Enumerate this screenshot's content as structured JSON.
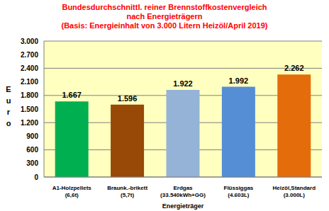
{
  "chart_data": {
    "type": "bar",
    "title": "Bundesdurchschnittl. reiner Brennstoffkostenvergleich\nnach Energieträgern\n(Basis: Energieinhalt von  3.000 Litern Heizöl/April 2019)",
    "x_label": "Energieträger",
    "y_label": "Euro",
    "categories": [
      "A1-Holzpellets\n(6,6t)",
      "Braunk.-brikett\n(5,7t)",
      "Erdgas\n(33.540kWh+GG)",
      "Flüssiggas\n(4.603L)",
      "Heizöl,Standard\n(3.000L)"
    ],
    "values": [
      1667,
      1596,
      1922,
      1992,
      2262
    ],
    "value_labels": [
      "1.667",
      "1.596",
      "1.922",
      "1.992",
      "2.262"
    ],
    "colors": [
      "#00b050",
      "#984807",
      "#95b3d7",
      "#558ed5",
      "#e46c0a"
    ],
    "ylim": [
      0,
      3000
    ],
    "yticks": [
      0,
      300,
      600,
      900,
      {
        "value": 1200,
        "label": "1.200"
      },
      {
        "value": 1500,
        "label": "1.500"
      },
      {
        "value": 1800,
        "label": "1.800"
      },
      {
        "value": 2100,
        "label": "2.100"
      },
      {
        "value": 2400,
        "label": "2.400"
      },
      {
        "value": 2700,
        "label": "2.700"
      },
      {
        "value": 3000,
        "label": "3.000"
      }
    ],
    "grid": true,
    "data_labels": true
  }
}
